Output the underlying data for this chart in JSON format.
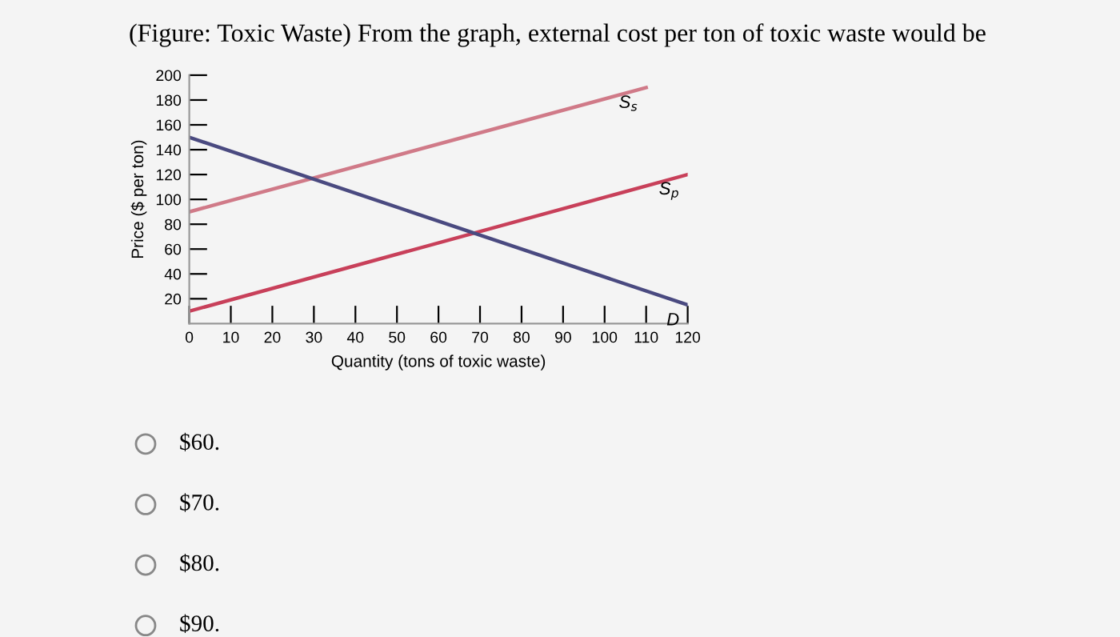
{
  "chart_data": {
    "type": "line",
    "title": "(Figure: Toxic Waste) From the graph, external cost per ton of toxic waste would be",
    "xlabel": "Quantity (tons of toxic waste)",
    "ylabel": "Price ($ per ton)",
    "series": [
      {
        "name": "S$_{s}$",
        "color": "#d07a88",
        "x": [
          0,
          110
        ],
        "values": [
          90,
          190
        ]
      },
      {
        "name": "S$_{p}$",
        "color": "#c8405a",
        "x": [
          0,
          120
        ],
        "values": [
          10,
          120
        ]
      },
      {
        "name": "D",
        "color": "#4a4a80",
        "x": [
          0,
          120
        ],
        "values": [
          150,
          15
        ]
      }
    ],
    "xlim": [
      0,
      120
    ],
    "xticks": [
      0,
      10,
      20,
      30,
      40,
      50,
      60,
      70,
      80,
      90,
      100,
      110,
      120
    ],
    "ylim": [
      0,
      200
    ],
    "yticks": [
      20,
      40,
      60,
      80,
      100,
      120,
      140,
      160,
      180,
      200
    ],
    "grid": false,
    "legend": false,
    "marker": "none",
    "line_style": "solid",
    "annotations": [
      "$60.",
      "$70.",
      "$80.",
      "$90."
    ]
  }
}
